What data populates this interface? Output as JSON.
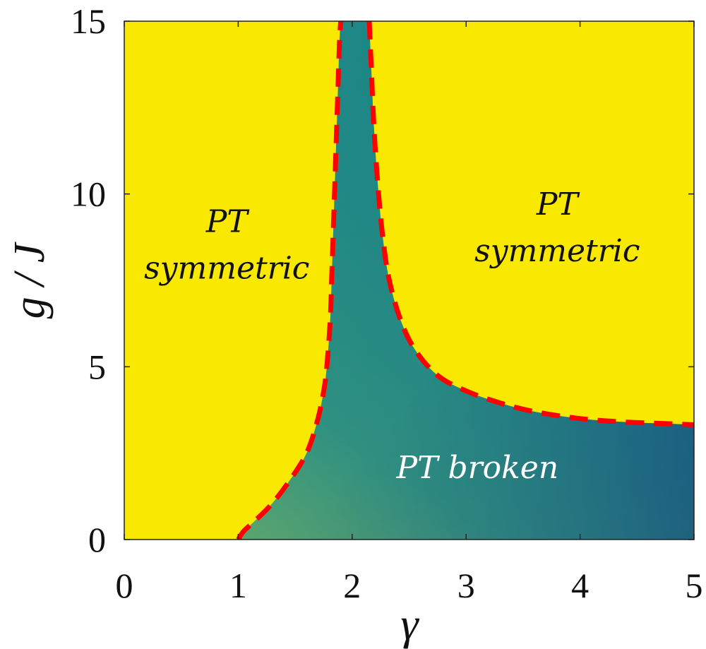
{
  "chart_data": {
    "type": "heatmap",
    "title": "",
    "xlabel": "γ",
    "ylabel": "g / J",
    "xlim": [
      0,
      5
    ],
    "ylim": [
      0,
      15
    ],
    "xticks": [
      0,
      1,
      2,
      3,
      4,
      5
    ],
    "yticks": [
      0,
      5,
      10,
      15
    ],
    "grid": false,
    "colors": {
      "symmetric": "#f9e800",
      "broken_light": "#5fb36b",
      "broken_mid": "#1d8a86",
      "broken_dark": "#0f3a80",
      "boundary": "#ff0000",
      "axis": "#222222",
      "label_dark": "#111111",
      "label_light": "#ffffff"
    },
    "boundary_left": {
      "name": "left phase boundary",
      "points": [
        [
          1.0,
          0.0
        ],
        [
          1.05,
          0.25
        ],
        [
          1.15,
          0.55
        ],
        [
          1.3,
          1.05
        ],
        [
          1.45,
          1.7
        ],
        [
          1.6,
          2.5
        ],
        [
          1.7,
          3.5
        ],
        [
          1.76,
          4.5
        ],
        [
          1.79,
          5.5
        ],
        [
          1.81,
          6.5
        ],
        [
          1.82,
          7.5
        ],
        [
          1.83,
          8.5
        ],
        [
          1.84,
          9.5
        ],
        [
          1.85,
          10.5
        ],
        [
          1.86,
          11.5
        ],
        [
          1.87,
          12.5
        ],
        [
          1.88,
          13.5
        ],
        [
          1.89,
          14.5
        ],
        [
          1.9,
          15.0
        ]
      ]
    },
    "boundary_right": {
      "name": "right phase boundary",
      "points": [
        [
          2.15,
          15.0
        ],
        [
          2.17,
          13.5
        ],
        [
          2.19,
          12.0
        ],
        [
          2.22,
          10.5
        ],
        [
          2.26,
          9.0
        ],
        [
          2.32,
          7.6
        ],
        [
          2.42,
          6.4
        ],
        [
          2.55,
          5.5
        ],
        [
          2.75,
          4.75
        ],
        [
          3.0,
          4.3
        ],
        [
          3.3,
          3.95
        ],
        [
          3.6,
          3.7
        ],
        [
          4.0,
          3.5
        ],
        [
          4.4,
          3.4
        ],
        [
          4.8,
          3.35
        ],
        [
          5.0,
          3.32
        ]
      ]
    },
    "annotations": [
      {
        "id": "left-symmetric",
        "line1": "PT",
        "line2": "symmetric",
        "x": 0.9,
        "y": 8.9,
        "region": "PT symmetric"
      },
      {
        "id": "right-symmetric",
        "line1": "PT",
        "line2": "symmetric",
        "x": 3.8,
        "y": 9.4,
        "region": "PT symmetric"
      },
      {
        "id": "broken",
        "text": "PT broken",
        "x": 3.1,
        "y": 2.1,
        "region": "PT broken"
      }
    ]
  }
}
